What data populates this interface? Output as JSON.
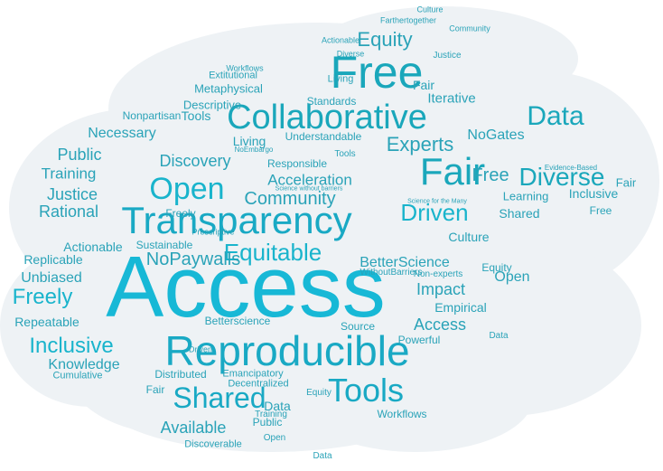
{
  "palette": {
    "cloud_fill": "#eef2f5",
    "primary": "#19b4cc",
    "secondary": "#2aa3b8",
    "minor": "#8fb4c2"
  },
  "words": [
    "Access",
    "Reproducible",
    "Transparency",
    "Collaborative",
    "Free",
    "Fair",
    "Open",
    "Shared",
    "Tools",
    "Data",
    "Diverse",
    "Equitable",
    "Community",
    "Driven",
    "Inclusive",
    "Equity",
    "Experts",
    "Acceleration",
    "Freely",
    "Discovery",
    "NoPaywalls",
    "Public",
    "Justice",
    "Rational",
    "Training",
    "Knowledge",
    "BetterScience",
    "Impact",
    "Empirical",
    "Culture",
    "Unbiased",
    "Replicable",
    "Repeatable",
    "Necessary",
    "Available",
    "Actionable",
    "Metaphysical",
    "Extitutional",
    "Standards",
    "Understandable",
    "Responsible",
    "Sustainable",
    "NoGates",
    "Learning",
    "Living",
    "Descriptive",
    "Iterative",
    "Nonpartisan",
    "Cumulative",
    "Distributed",
    "Emancipatory",
    "Decentralized",
    "Workflows",
    "Discoverable",
    "Source",
    "Powerful",
    "Betterscience",
    "Farthertogether",
    "Evidence-Based",
    "WithoutBarriers",
    "Non-experts",
    "NoEmbargo",
    "Prescriptive",
    "Science for the Many",
    "Science without barriers"
  ]
}
